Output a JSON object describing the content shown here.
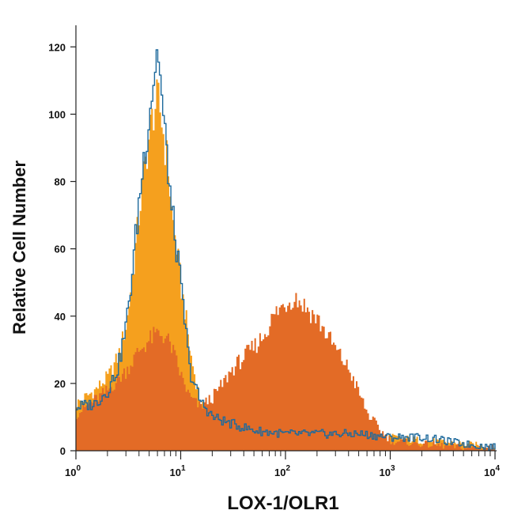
{
  "chart_data": {
    "type": "area",
    "title": "",
    "xlabel": "LOX-1/OLR1",
    "ylabel": "Relative Cell Number",
    "x_scale": "log",
    "xlim": [
      1,
      10000
    ],
    "ylim": [
      0,
      125
    ],
    "x_ticks": [
      {
        "value": 1,
        "base": "10",
        "exp": "0"
      },
      {
        "value": 10,
        "base": "10",
        "exp": "1"
      },
      {
        "value": 100,
        "base": "10",
        "exp": "2"
      },
      {
        "value": 1000,
        "base": "10",
        "exp": "3"
      },
      {
        "value": 10000,
        "base": "10",
        "exp": "4"
      }
    ],
    "y_ticks": [
      0,
      20,
      40,
      60,
      80,
      100,
      120
    ],
    "grid": false,
    "legend": "none",
    "series": [
      {
        "style": "filled",
        "color": "#f5a01e",
        "x": [
          1,
          1.5,
          2,
          2.5,
          3,
          3.5,
          4,
          4.5,
          5,
          5.5,
          6,
          6.5,
          7,
          7.5,
          8,
          9,
          10,
          11,
          12,
          15,
          20,
          30,
          50,
          100,
          200,
          500,
          1000,
          2000,
          5000,
          10000
        ],
        "y": [
          14,
          18,
          22,
          28,
          38,
          55,
          72,
          85,
          95,
          102,
          104,
          98,
          90,
          84,
          72,
          60,
          48,
          40,
          30,
          15,
          8,
          6,
          4,
          4,
          3,
          4,
          4,
          3,
          2,
          1
        ]
      },
      {
        "style": "filled",
        "color": "#e36b26",
        "x": [
          1,
          2,
          3,
          4,
          5,
          6,
          7,
          8,
          10,
          12,
          15,
          20,
          25,
          30,
          40,
          50,
          60,
          70,
          80,
          100,
          120,
          150,
          200,
          250,
          300,
          400,
          500,
          600,
          800,
          1000,
          2000,
          5000,
          10000
        ],
        "y": [
          11,
          18,
          24,
          30,
          33,
          35,
          34,
          31,
          22,
          16,
          13,
          16,
          20,
          24,
          28,
          31,
          34,
          38,
          41,
          44,
          46,
          43,
          39,
          34,
          30,
          24,
          17,
          11,
          6,
          3,
          2,
          1,
          1
        ]
      },
      {
        "style": "outline",
        "color": "#1e6a9c",
        "x": [
          1,
          1.5,
          2,
          2.5,
          3,
          3.5,
          4,
          4.5,
          5,
          5.5,
          6,
          6.5,
          7,
          7.5,
          8,
          9,
          10,
          11,
          12,
          15,
          20,
          30,
          50,
          100,
          200,
          500,
          1000,
          2000,
          5000,
          10000
        ],
        "y": [
          13,
          14,
          18,
          25,
          38,
          57,
          76,
          90,
          102,
          112,
          120,
          104,
          92,
          84,
          72,
          60,
          47,
          36,
          24,
          15,
          10,
          8,
          6,
          5,
          5,
          5,
          4,
          4,
          2,
          1
        ]
      }
    ]
  }
}
